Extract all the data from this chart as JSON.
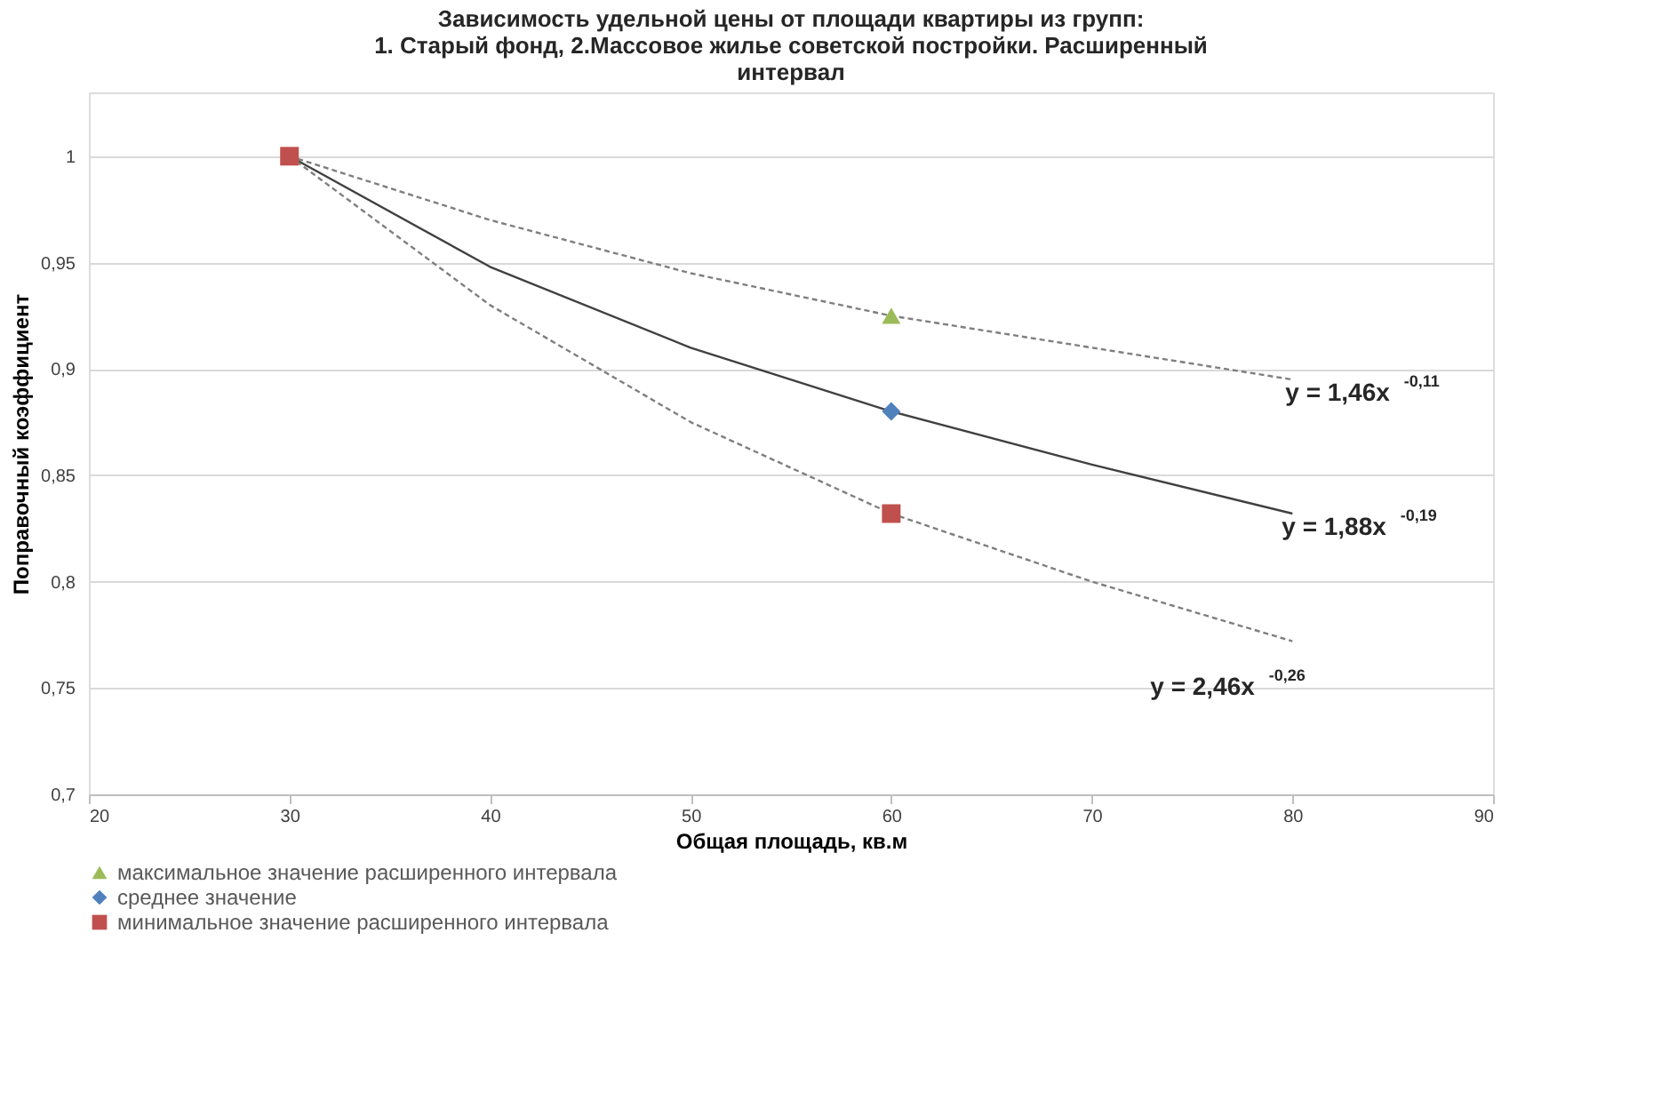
{
  "chart_data": {
    "type": "scatter",
    "title": [
      "Зависимость удельной цены от площади квартиры из групп:",
      "1. Старый фонд, 2.Массовое жилье советской постройки.  Расширенный",
      "интервал"
    ],
    "xlabel": "Общая площадь, кв.м",
    "ylabel": "Поправочный коэффициент",
    "xlim": [
      20,
      90
    ],
    "xticks": [
      20,
      30,
      40,
      50,
      60,
      70,
      80,
      90
    ],
    "ylim": [
      0.7,
      1.03
    ],
    "yticks": [
      {
        "value": 0.7,
        "label": "0,7"
      },
      {
        "value": 0.75,
        "label": "0,75"
      },
      {
        "value": 0.8,
        "label": "0,8"
      },
      {
        "value": 0.85,
        "label": "0,85"
      },
      {
        "value": 0.9,
        "label": "0,9"
      },
      {
        "value": 0.95,
        "label": "0,95"
      },
      {
        "value": 1,
        "label": "1"
      }
    ],
    "grid": "y",
    "legend": "bottom",
    "series": [
      {
        "name": "максимальное значение расширенного интервала",
        "marker": "triangle",
        "color": "#9bbb59",
        "x": [
          60
        ],
        "values": [
          0.925
        ]
      },
      {
        "name": "среднее значение",
        "marker": "diamond",
        "color": "#4f81bd",
        "x": [
          60
        ],
        "values": [
          0.88
        ]
      },
      {
        "name": "минимальное значение расширенного интервала",
        "marker": "square",
        "color": "#c0504d",
        "x": [
          30,
          60
        ],
        "values": [
          1,
          0.832
        ]
      },
      {
        "type": "line",
        "marker": "none",
        "line_style": "dashed",
        "color": "#7f7f7f",
        "x": [
          30,
          40,
          50,
          60,
          70,
          80
        ],
        "values": [
          1,
          0.97,
          0.945,
          0.925,
          0.91,
          0.895
        ]
      },
      {
        "type": "line",
        "marker": "none",
        "line_style": "solid",
        "color": "#404040",
        "x": [
          30,
          40,
          50,
          60,
          70,
          80
        ],
        "values": [
          1,
          0.948,
          0.91,
          0.88,
          0.855,
          0.832
        ]
      },
      {
        "type": "line",
        "marker": "none",
        "line_style": "dashed",
        "color": "#7f7f7f",
        "x": [
          30,
          40,
          50,
          60,
          70,
          80
        ],
        "values": [
          1,
          0.93,
          0.875,
          0.832,
          0.8,
          0.772
        ]
      }
    ],
    "annotations": [
      "y = 1,46x$^{-0,11}$",
      "y = 1,88x$^{-0,19}$",
      "y = 2,46x$^{-0,26}$"
    ]
  }
}
